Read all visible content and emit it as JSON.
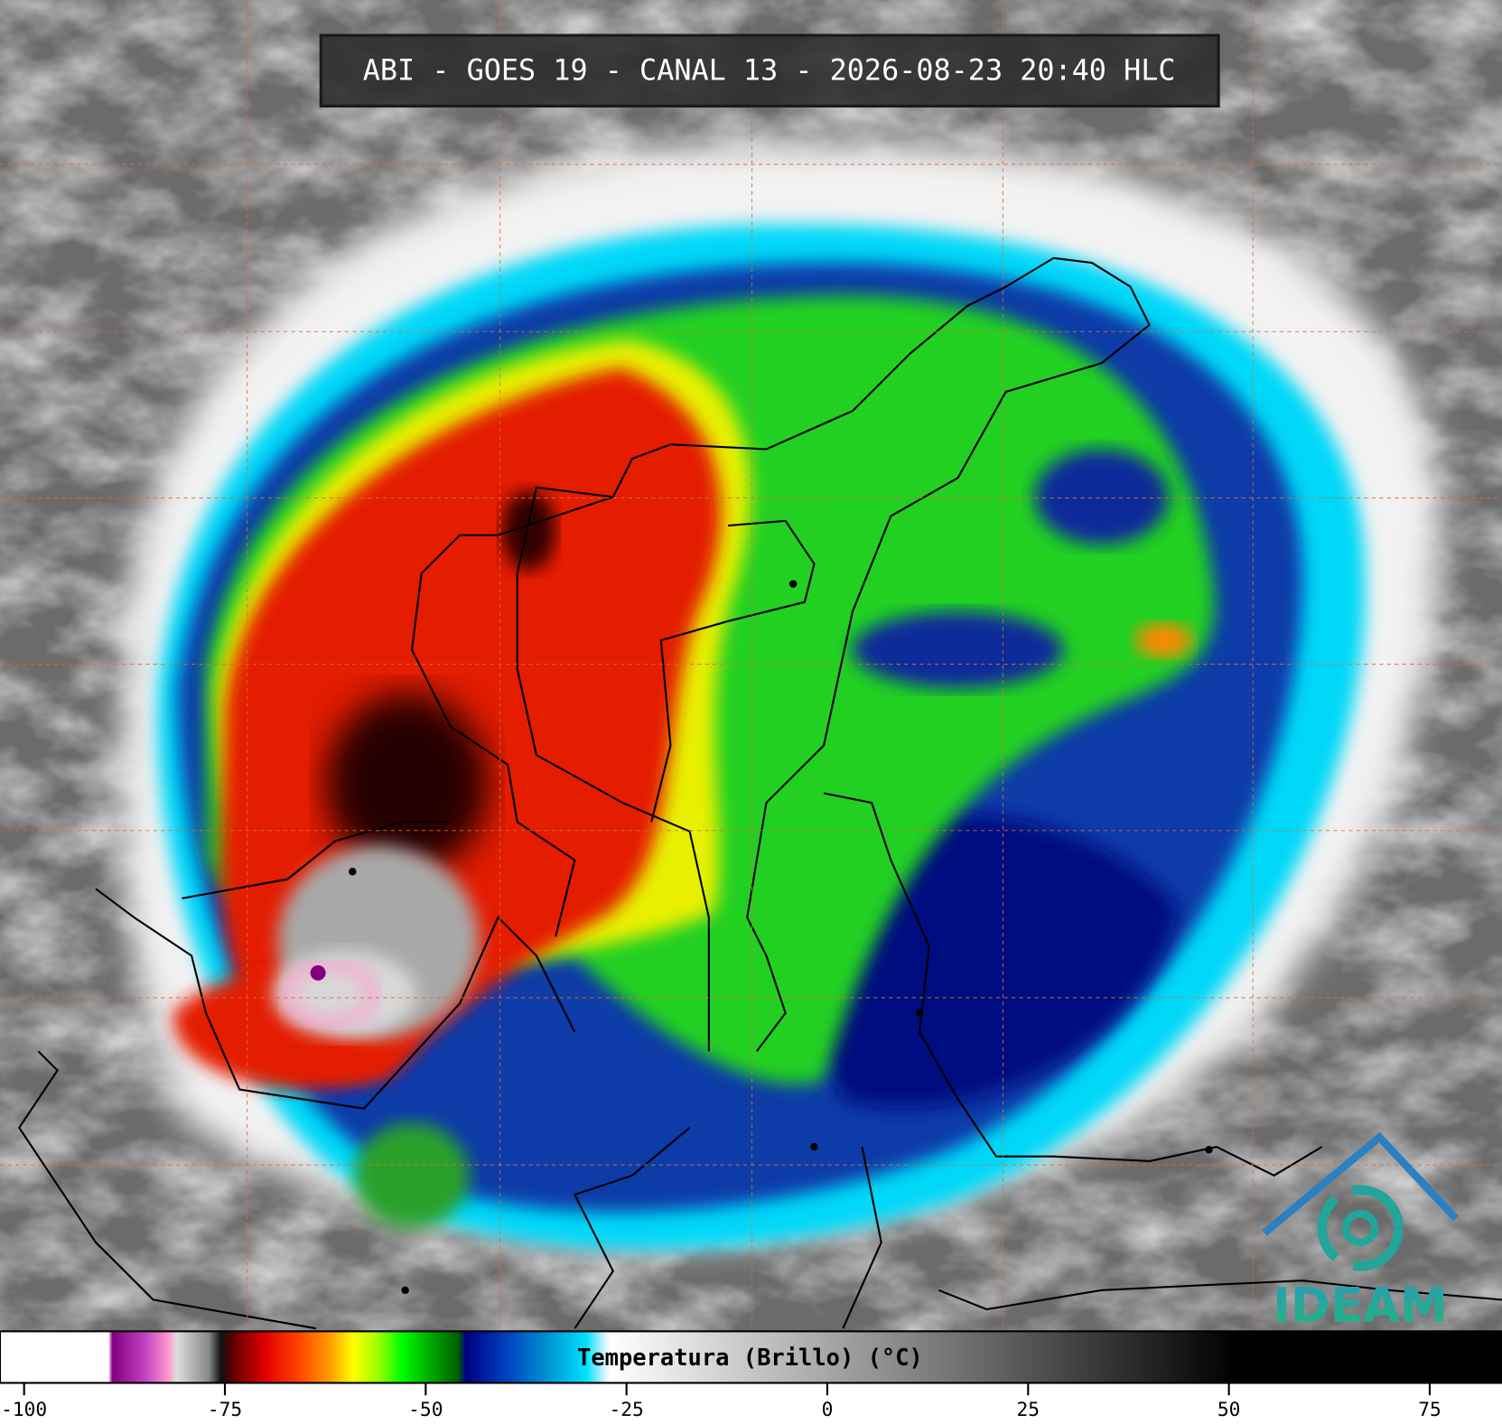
{
  "header": {
    "title": "ABI - GOES 19 - CANAL 13 - 2026-08-23 20:40 HLC"
  },
  "colorbar": {
    "label": "Temperatura (Brillo) (°C)",
    "lim": [
      -103,
      84
    ],
    "ticks": [
      -100,
      -75,
      -50,
      -25,
      0,
      25,
      50,
      75
    ],
    "stops": [
      {
        "value": -103,
        "color": "#ffffff"
      },
      {
        "value": -89.5,
        "color": "#ffffff"
      },
      {
        "value": -89,
        "color": "#800080"
      },
      {
        "value": -85,
        "color": "#c040c0"
      },
      {
        "value": -82,
        "color": "#ff99cc"
      },
      {
        "value": -81,
        "color": "#dddddd"
      },
      {
        "value": -77,
        "color": "#888888"
      },
      {
        "value": -75.5,
        "color": "#111111"
      },
      {
        "value": -74,
        "color": "#600000"
      },
      {
        "value": -70,
        "color": "#e00000"
      },
      {
        "value": -66,
        "color": "#ff4000"
      },
      {
        "value": -62,
        "color": "#ff9900"
      },
      {
        "value": -59,
        "color": "#ffff00"
      },
      {
        "value": -56,
        "color": "#a0ff00"
      },
      {
        "value": -53,
        "color": "#00ff00"
      },
      {
        "value": -49,
        "color": "#00a000"
      },
      {
        "value": -46,
        "color": "#006000"
      },
      {
        "value": -45,
        "color": "#000080"
      },
      {
        "value": -40,
        "color": "#0040c0"
      },
      {
        "value": -35,
        "color": "#0090d0"
      },
      {
        "value": -30,
        "color": "#00e0ff"
      },
      {
        "value": -28,
        "color": "#c0f0ff"
      },
      {
        "value": -27,
        "color": "#ffffff"
      },
      {
        "value": 51,
        "color": "#000000"
      },
      {
        "value": 84,
        "color": "#000000"
      }
    ]
  },
  "logo": {
    "text": "IDEAM"
  }
}
